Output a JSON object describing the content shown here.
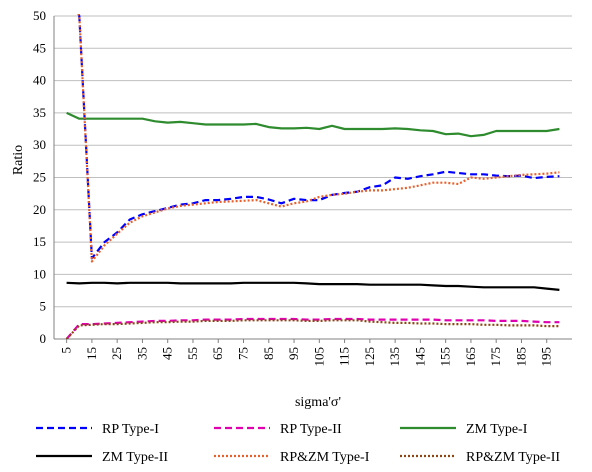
{
  "chart_data": {
    "type": "line",
    "xlabel": "sigma'σ'",
    "ylabel": "Ratio",
    "ylim": [
      0,
      50
    ],
    "yticks": [
      0,
      5,
      10,
      15,
      20,
      25,
      30,
      35,
      40,
      45,
      50
    ],
    "xticks": [
      5,
      15,
      25,
      35,
      45,
      55,
      65,
      75,
      85,
      95,
      105,
      115,
      125,
      135,
      145,
      155,
      165,
      175,
      185,
      195
    ],
    "x": [
      5,
      10,
      15,
      20,
      25,
      30,
      35,
      40,
      45,
      50,
      55,
      60,
      65,
      70,
      75,
      80,
      85,
      90,
      95,
      100,
      105,
      110,
      115,
      120,
      125,
      130,
      135,
      140,
      145,
      150,
      155,
      160,
      165,
      170,
      175,
      180,
      185,
      190,
      195,
      200
    ],
    "grid": "horizontal",
    "legend_position": "bottom",
    "series": [
      {
        "name": "RP Type-I",
        "color": "#0000ff",
        "dash": "dashed",
        "values": [
          55,
          50,
          12.5,
          15.0,
          16.5,
          18.5,
          19.3,
          19.8,
          20.3,
          20.8,
          21.0,
          21.5,
          21.5,
          21.7,
          22.0,
          22.0,
          21.6,
          21.0,
          21.7,
          21.5,
          21.5,
          22.3,
          22.6,
          22.8,
          23.5,
          23.8,
          25.0,
          24.8,
          25.2,
          25.5,
          25.9,
          25.7,
          25.5,
          25.5,
          25.3,
          25.2,
          25.3,
          24.9,
          25.1,
          25.2
        ]
      },
      {
        "name": "RP Type-II",
        "color": "#e000b0",
        "dash": "dashed",
        "values": [
          0,
          2.3,
          2.3,
          2.4,
          2.5,
          2.6,
          2.7,
          2.8,
          2.8,
          2.9,
          2.9,
          3.0,
          3.0,
          3.0,
          3.1,
          3.1,
          3.1,
          3.1,
          3.1,
          3.0,
          3.0,
          3.1,
          3.1,
          3.1,
          3.0,
          3.0,
          3.0,
          3.0,
          3.0,
          3.0,
          2.9,
          2.9,
          2.9,
          2.9,
          2.8,
          2.8,
          2.8,
          2.7,
          2.6,
          2.6
        ]
      },
      {
        "name": "ZM Type-I",
        "color": "#2e8b2e",
        "dash": "solid",
        "values": [
          35.0,
          34.1,
          34.1,
          34.1,
          34.1,
          34.1,
          34.1,
          33.7,
          33.5,
          33.6,
          33.4,
          33.2,
          33.2,
          33.2,
          33.2,
          33.3,
          32.8,
          32.6,
          32.6,
          32.7,
          32.5,
          33.0,
          32.5,
          32.5,
          32.5,
          32.5,
          32.6,
          32.5,
          32.3,
          32.2,
          31.7,
          31.8,
          31.4,
          31.6,
          32.2,
          32.2,
          32.2,
          32.2,
          32.2,
          32.5
        ]
      },
      {
        "name": "ZM Type-II",
        "color": "#000000",
        "dash": "solid",
        "values": [
          8.7,
          8.6,
          8.7,
          8.7,
          8.6,
          8.7,
          8.7,
          8.7,
          8.7,
          8.6,
          8.6,
          8.6,
          8.6,
          8.6,
          8.7,
          8.7,
          8.7,
          8.7,
          8.7,
          8.6,
          8.5,
          8.5,
          8.5,
          8.5,
          8.4,
          8.4,
          8.4,
          8.4,
          8.4,
          8.3,
          8.2,
          8.2,
          8.1,
          8.0,
          8.0,
          8.0,
          8.0,
          8.0,
          7.8,
          7.6
        ]
      },
      {
        "name": "RP&ZM Type-I",
        "color": "#e8602c",
        "dash": "dotted",
        "values": [
          55,
          50,
          12.0,
          14.5,
          16.3,
          18.0,
          19.0,
          19.6,
          20.2,
          20.6,
          20.8,
          21.0,
          21.2,
          21.3,
          21.4,
          21.5,
          21.0,
          20.5,
          21.0,
          21.3,
          22.0,
          22.3,
          22.5,
          22.8,
          23.0,
          23.0,
          23.2,
          23.4,
          23.8,
          24.2,
          24.2,
          24.0,
          25.0,
          24.8,
          25.0,
          25.2,
          25.4,
          25.5,
          25.6,
          25.8
        ]
      },
      {
        "name": "RP&ZM Type-II",
        "color": "#8b4513",
        "dash": "dotted",
        "values": [
          0,
          2.1,
          2.2,
          2.3,
          2.3,
          2.4,
          2.5,
          2.6,
          2.6,
          2.7,
          2.7,
          2.8,
          2.8,
          2.8,
          2.9,
          2.9,
          2.9,
          2.9,
          2.9,
          2.8,
          2.8,
          2.9,
          2.9,
          2.9,
          2.7,
          2.6,
          2.5,
          2.5,
          2.4,
          2.4,
          2.3,
          2.3,
          2.3,
          2.2,
          2.2,
          2.1,
          2.1,
          2.1,
          2.0,
          2.0
        ]
      }
    ]
  }
}
